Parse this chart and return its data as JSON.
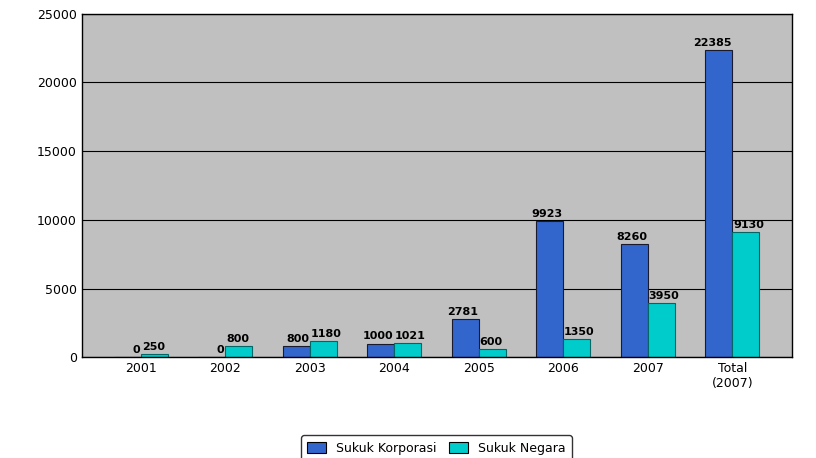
{
  "categories": [
    "2001",
    "2002",
    "2003",
    "2004",
    "2005",
    "2006",
    "2007",
    "Total\n(2007)"
  ],
  "sukuk_korporasi": [
    0,
    0,
    800,
    1000,
    2781,
    9923,
    8260,
    22385
  ],
  "sukuk_negara": [
    250,
    800,
    1180,
    1021,
    600,
    1350,
    3950,
    9130
  ],
  "korporasi_color": "#3366CC",
  "negara_color": "#00CCCC",
  "bar_width": 0.32,
  "ylim": [
    0,
    25000
  ],
  "yticks": [
    0,
    5000,
    10000,
    15000,
    20000,
    25000
  ],
  "plot_bg_color": "#C0C0C0",
  "fig_bg_color": "#FFFFFF",
  "legend_korporasi": "Sukuk Korporasi",
  "legend_negara": "Sukuk Negara",
  "label_fontsize": 8,
  "tick_fontsize": 9
}
